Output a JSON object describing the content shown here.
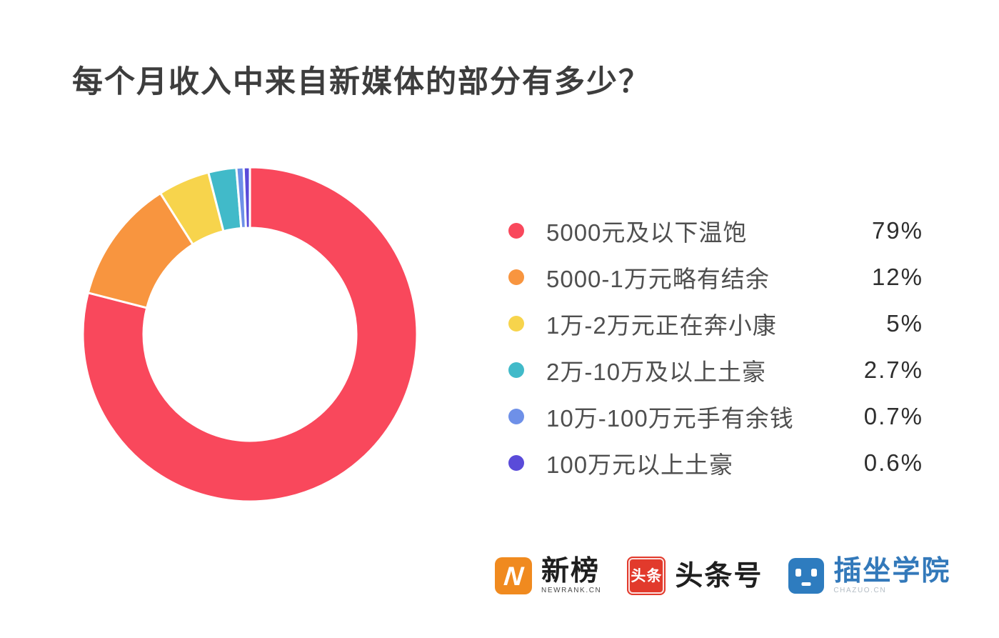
{
  "title": "每个月收入中来自新媒体的部分有多少？",
  "chart_data": {
    "type": "pie",
    "subtype": "donut",
    "title": "每个月收入中来自新媒体的部分有多少？",
    "direction": "clockwise",
    "start_angle_deg": 0,
    "inner_radius_ratio": 0.63,
    "legend_position": "right",
    "series": [
      {
        "name": "5000元及以下温饱",
        "value": 79,
        "pct_label": "79%",
        "color": "#f9485c"
      },
      {
        "name": "5000-1万元略有结余",
        "value": 12,
        "pct_label": "12%",
        "color": "#f8953f"
      },
      {
        "name": "1万-2万元正在奔小康",
        "value": 5,
        "pct_label": "5%",
        "color": "#f7d44c"
      },
      {
        "name": "2万-10万及以上土豪",
        "value": 2.7,
        "pct_label": "2.7%",
        "color": "#41bac9"
      },
      {
        "name": "10万-100万元手有余钱",
        "value": 0.7,
        "pct_label": "0.7%",
        "color": "#6e90e8"
      },
      {
        "name": "100万元以上土豪",
        "value": 0.6,
        "pct_label": "0.6%",
        "color": "#5a4bd9"
      }
    ]
  },
  "footer": {
    "logos": [
      {
        "name": "newrank",
        "icon_letter": "N",
        "text": "新榜",
        "subtext": "NEWRANK.CN",
        "icon_color": "#f08a1f"
      },
      {
        "name": "toutiao",
        "icon_chars": "头条",
        "text": "头条号",
        "icon_color": "#e23a2c"
      },
      {
        "name": "chazuo",
        "text": "插坐学院",
        "subtext": "CHAZUO.CN",
        "icon_color": "#2e7cbf"
      }
    ]
  }
}
